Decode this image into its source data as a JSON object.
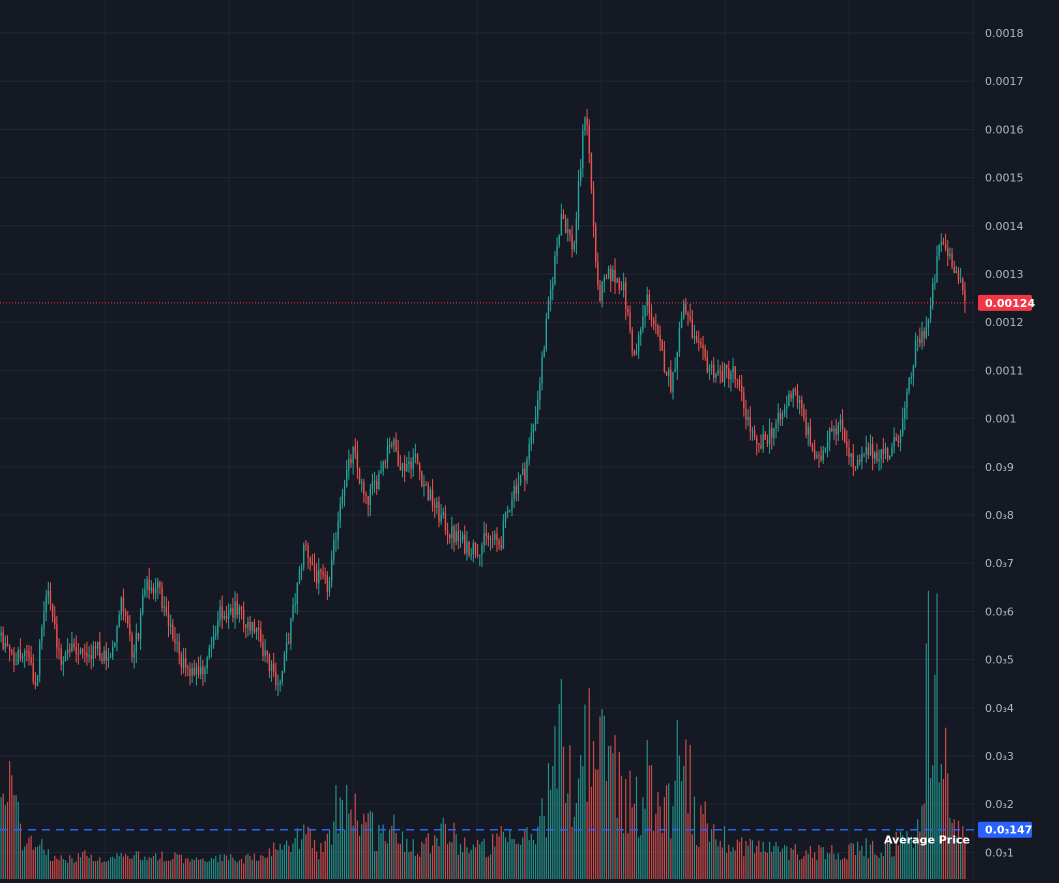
{
  "chart_data": {
    "type": "candlestick",
    "y_axis_labels": [
      "0.0018",
      "0.0017",
      "0.0016",
      "0.0015",
      "0.0014",
      "0.0013",
      "0.0012",
      "0.0011",
      "0.001",
      "0.0₃9",
      "0.0₃8",
      "0.0₃7",
      "0.0₃6",
      "0.0₃5",
      "0.0₃4",
      "0.0₃3",
      "0.0₃2",
      "0.0₃1"
    ],
    "y_axis_values": [
      0.0018,
      0.0017,
      0.0016,
      0.0015,
      0.0014,
      0.0013,
      0.0012,
      0.0011,
      0.001,
      0.0009,
      0.0008,
      0.0007,
      0.0006,
      0.0005,
      0.0004,
      0.0003,
      0.0002,
      0.0001
    ],
    "ylim": [
      7e-05,
      0.00187
    ],
    "grid": true,
    "current_price": {
      "value": 0.00124,
      "label": "0.00124",
      "color": "#f23645"
    },
    "average_price": {
      "value": 0.000147,
      "label": "0.0₃147",
      "title": "Average Price",
      "color": "#2962ff"
    },
    "up_color": "#26a69a",
    "down_color": "#ef5350",
    "price_path": [
      [
        0,
        0.00055
      ],
      [
        1,
        0.0005
      ],
      [
        2,
        0.00052
      ],
      [
        3,
        0.00045
      ],
      [
        4,
        0.00066
      ],
      [
        5,
        0.0005
      ],
      [
        6,
        0.00054
      ],
      [
        7,
        0.0005
      ],
      [
        8,
        0.00052
      ],
      [
        9,
        0.00049
      ],
      [
        10,
        0.00062
      ],
      [
        11,
        0.0005
      ],
      [
        12,
        0.00065
      ],
      [
        13,
        0.00065
      ],
      [
        14,
        0.00057
      ],
      [
        15,
        0.00049
      ],
      [
        16,
        0.00048
      ],
      [
        17,
        0.00049
      ],
      [
        18,
        0.00059
      ],
      [
        19,
        0.00061
      ],
      [
        20,
        0.00058
      ],
      [
        21,
        0.00057
      ],
      [
        22,
        0.00049
      ],
      [
        23,
        0.00045
      ],
      [
        24,
        0.00059
      ],
      [
        25,
        0.00074
      ],
      [
        26,
        0.00067
      ],
      [
        27,
        0.00065
      ],
      [
        28,
        0.00085
      ],
      [
        29,
        0.00093
      ],
      [
        30,
        0.00082
      ],
      [
        31,
        0.00088
      ],
      [
        32,
        0.00096
      ],
      [
        33,
        0.0009
      ],
      [
        34,
        0.00092
      ],
      [
        35,
        0.00085
      ],
      [
        36,
        0.0008
      ],
      [
        37,
        0.00076
      ],
      [
        38,
        0.00074
      ],
      [
        39,
        0.00073
      ],
      [
        40,
        0.00075
      ],
      [
        41,
        0.00074
      ],
      [
        42,
        0.00085
      ],
      [
        43,
        0.00089
      ],
      [
        44,
        0.00103
      ],
      [
        45,
        0.00124
      ],
      [
        46,
        0.00143
      ],
      [
        47,
        0.00135
      ],
      [
        48,
        0.00166
      ],
      [
        49,
        0.00125
      ],
      [
        50,
        0.0013
      ],
      [
        51,
        0.00128
      ],
      [
        52,
        0.00112
      ],
      [
        53,
        0.00125
      ],
      [
        54,
        0.00115
      ],
      [
        55,
        0.00107
      ],
      [
        56,
        0.00124
      ],
      [
        57,
        0.00115
      ],
      [
        58,
        0.00111
      ],
      [
        59,
        0.00109
      ],
      [
        60,
        0.0011
      ],
      [
        61,
        0.00102
      ],
      [
        62,
        0.00093
      ],
      [
        63,
        0.00097
      ],
      [
        64,
        0.001
      ],
      [
        65,
        0.00107
      ],
      [
        66,
        0.00098
      ],
      [
        67,
        0.0009
      ],
      [
        68,
        0.00099
      ],
      [
        69,
        0.00098
      ],
      [
        70,
        0.00089
      ],
      [
        71,
        0.00093
      ],
      [
        72,
        0.00093
      ],
      [
        73,
        0.00093
      ],
      [
        74,
        0.001
      ],
      [
        75,
        0.00115
      ],
      [
        76,
        0.0012
      ],
      [
        77,
        0.00137
      ],
      [
        78,
        0.00133
      ],
      [
        79,
        0.00124
      ]
    ],
    "volume_path": [
      [
        0,
        0.00013
      ],
      [
        1,
        0.00021
      ],
      [
        2,
        5e-05
      ],
      [
        3,
        8e-05
      ],
      [
        4,
        3e-05
      ],
      [
        5,
        2e-05
      ],
      [
        6,
        2e-05
      ],
      [
        7,
        3e-05
      ],
      [
        8,
        2e-05
      ],
      [
        9,
        2e-05
      ],
      [
        10,
        3e-05
      ],
      [
        11,
        3e-05
      ],
      [
        12,
        2e-05
      ],
      [
        13,
        3e-05
      ],
      [
        14,
        3e-05
      ],
      [
        15,
        2e-05
      ],
      [
        16,
        2e-05
      ],
      [
        17,
        2e-05
      ],
      [
        18,
        2e-05
      ],
      [
        19,
        3e-05
      ],
      [
        20,
        2e-05
      ],
      [
        21,
        3e-05
      ],
      [
        22,
        3e-05
      ],
      [
        23,
        6e-05
      ],
      [
        24,
        4e-05
      ],
      [
        25,
        0.0001
      ],
      [
        26,
        4e-05
      ],
      [
        27,
        6e-05
      ],
      [
        28,
        0.00021
      ],
      [
        29,
        0.00015
      ],
      [
        30,
        0.00012
      ],
      [
        31,
        8e-05
      ],
      [
        32,
        0.0001
      ],
      [
        33,
        7e-05
      ],
      [
        34,
        6e-05
      ],
      [
        35,
        6e-05
      ],
      [
        36,
        0.00011
      ],
      [
        37,
        8e-05
      ],
      [
        38,
        6e-05
      ],
      [
        39,
        5e-05
      ],
      [
        40,
        5e-05
      ],
      [
        41,
        7e-05
      ],
      [
        42,
        6e-05
      ],
      [
        43,
        7e-05
      ],
      [
        44,
        9e-05
      ],
      [
        45,
        0.0002
      ],
      [
        46,
        0.00033
      ],
      [
        47,
        0.00018
      ],
      [
        48,
        0.00035
      ],
      [
        49,
        0.00027
      ],
      [
        50,
        0.00031
      ],
      [
        51,
        0.0002
      ],
      [
        52,
        0.00015
      ],
      [
        53,
        0.00022
      ],
      [
        54,
        0.00018
      ],
      [
        55,
        0.00016
      ],
      [
        56,
        0.00039
      ],
      [
        57,
        9e-05
      ],
      [
        58,
        0.00012
      ],
      [
        59,
        8e-05
      ],
      [
        60,
        6e-05
      ],
      [
        61,
        6e-05
      ],
      [
        62,
        5e-05
      ],
      [
        63,
        5e-05
      ],
      [
        64,
        4e-05
      ],
      [
        65,
        4e-05
      ],
      [
        66,
        4e-05
      ],
      [
        67,
        4e-05
      ],
      [
        68,
        4e-05
      ],
      [
        69,
        4e-05
      ],
      [
        70,
        4e-05
      ],
      [
        71,
        5e-05
      ],
      [
        72,
        4e-05
      ],
      [
        73,
        6e-05
      ],
      [
        74,
        7e-05
      ],
      [
        75,
        6e-05
      ],
      [
        76,
        0.00048
      ],
      [
        77,
        0.00045
      ],
      [
        78,
        0.00012
      ],
      [
        79,
        6e-05
      ]
    ]
  }
}
